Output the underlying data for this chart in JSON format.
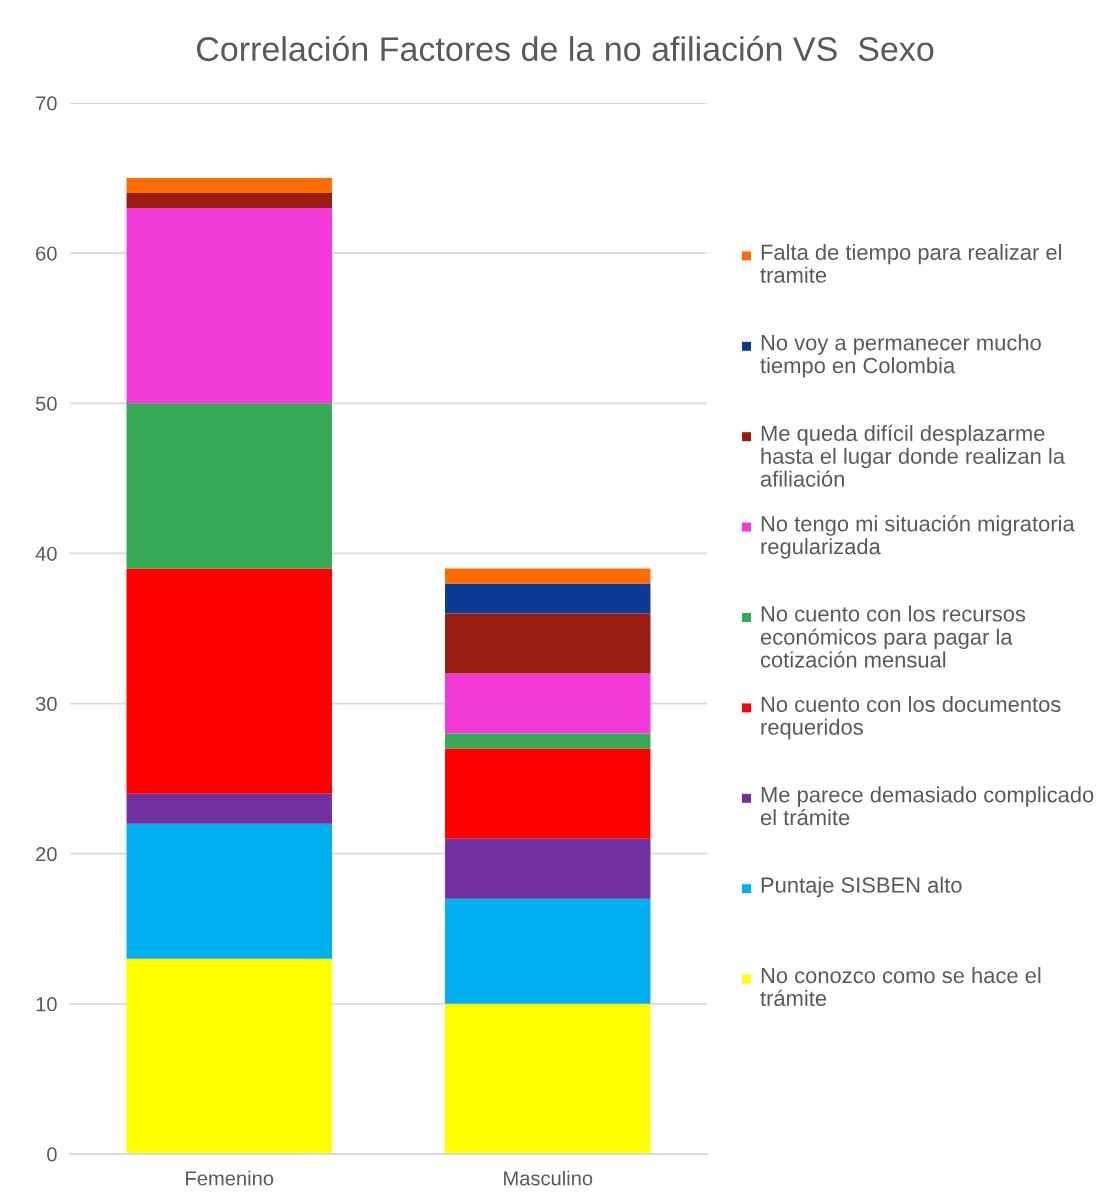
{
  "chart_data": {
    "type": "bar",
    "title": "Correlación Factores de la no afiliación VS  Sexo",
    "stacked": true,
    "categories": [
      "Femenino",
      "Masculino"
    ],
    "series": [
      {
        "name": "No conozco como se hace el trámite",
        "color": "#ffff00",
        "values": [
          13,
          10
        ]
      },
      {
        "name": "Puntaje SISBEN alto",
        "color": "#00b0f0",
        "values": [
          9,
          7
        ]
      },
      {
        "name": "Me parece demasiado complicado el trámite",
        "color": "#7030a0",
        "values": [
          2,
          4
        ]
      },
      {
        "name": "No cuento con los documentos requeridos",
        "color": "#ff0000",
        "values": [
          15,
          6
        ]
      },
      {
        "name": "No cuento con los recursos económicos para pagar la cotización mensual",
        "color": "#35a956",
        "values": [
          11,
          1
        ]
      },
      {
        "name": "No tengo mi situación migratoria regularizada",
        "color": "#f33ad9",
        "values": [
          13,
          4
        ]
      },
      {
        "name": "Me queda difícil desplazarme hasta el lugar donde realizan la afiliación",
        "color": "#9a1b11",
        "values": [
          1,
          4
        ]
      },
      {
        "name": "No voy a permanecer mucho tiempo en Colombia",
        "color": "#0d3b93",
        "values": [
          0,
          2
        ]
      },
      {
        "name": "Falta de tiempo para realizar el tramite",
        "color": "#ff6d00",
        "values": [
          1,
          1
        ]
      }
    ],
    "ylim": [
      0,
      70
    ],
    "yticks": [
      0,
      10,
      20,
      30,
      40,
      50,
      60,
      70
    ],
    "grid": "y",
    "legend": "right"
  }
}
